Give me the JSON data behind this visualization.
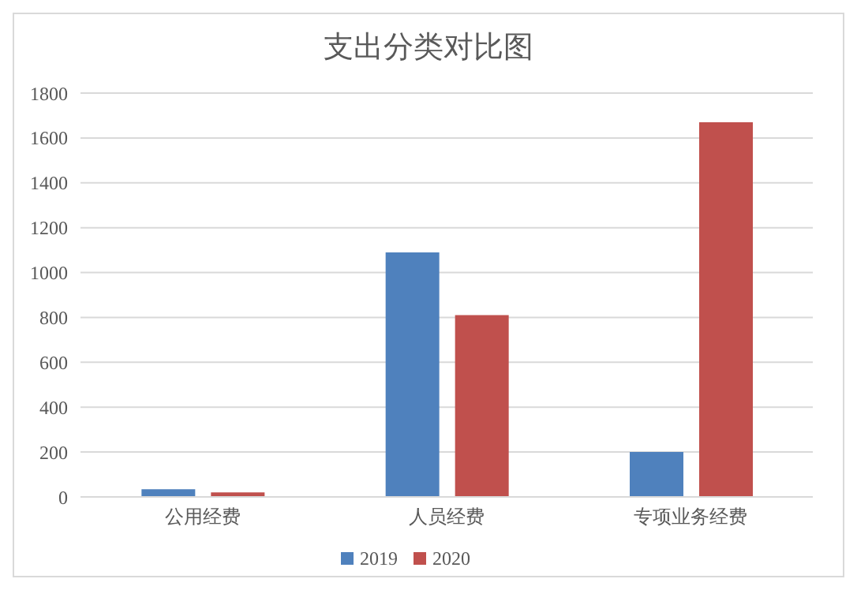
{
  "chart_data": {
    "type": "bar",
    "title": "支出分类对比图",
    "categories": [
      "公用经费",
      "人员经费",
      "专项业务经费"
    ],
    "series": [
      {
        "name": "2019",
        "color": "#4f81bd",
        "values": [
          34,
          1090,
          200
        ]
      },
      {
        "name": "2020",
        "color": "#c0504d",
        "values": [
          20,
          810,
          1670
        ]
      }
    ],
    "ylim": [
      0,
      1800
    ],
    "yticks": [
      0,
      200,
      400,
      600,
      800,
      1000,
      1200,
      1400,
      1600,
      1800
    ],
    "grid": "y",
    "legend": "bottom"
  }
}
